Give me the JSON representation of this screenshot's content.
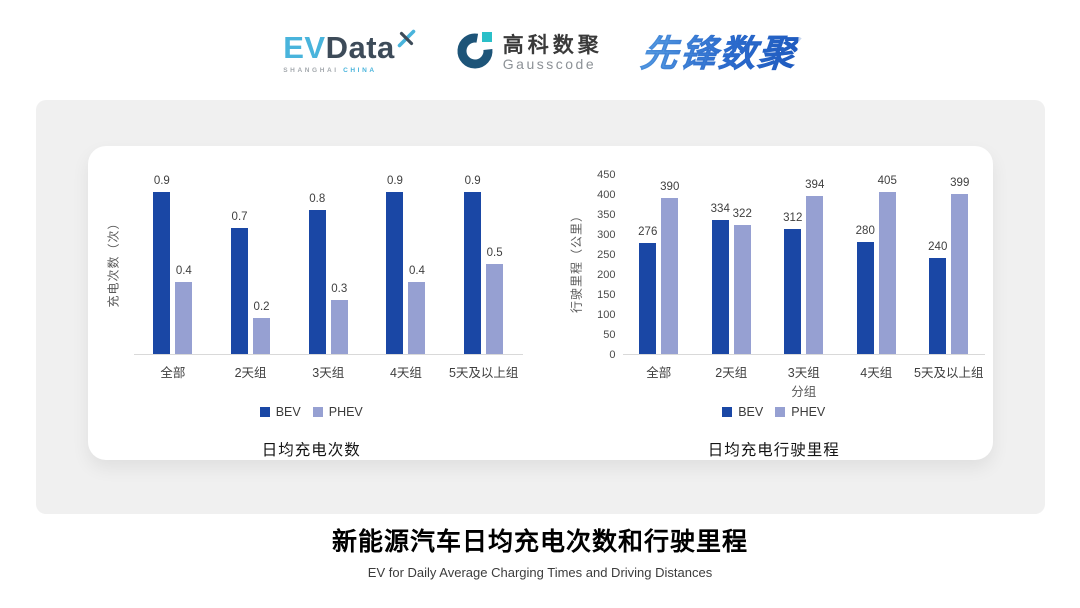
{
  "header": {
    "evdata": {
      "ev": "EV",
      "data": "Data",
      "sub_left": "SHANGHAI",
      "sub_right": "CHINA"
    },
    "gausscode": {
      "cn": "高科数聚",
      "en": "Gausscode"
    },
    "pioneer": {
      "text": "先锋数聚"
    }
  },
  "colors": {
    "bev": "#1A47A5",
    "phev": "#96A0D2",
    "axis_line": "#D9D9D9"
  },
  "chart_data": [
    {
      "type": "bar",
      "title": "日均充电次数",
      "ylabel": "充电次数（次）",
      "xlabel": "",
      "categories": [
        "全部",
        "2天组",
        "3天组",
        "4天组",
        "5天及以上组"
      ],
      "series": [
        {
          "name": "BEV",
          "color": "#1A47A5",
          "values": [
            0.9,
            0.7,
            0.8,
            0.9,
            0.9
          ]
        },
        {
          "name": "PHEV",
          "color": "#96A0D2",
          "values": [
            0.4,
            0.2,
            0.3,
            0.4,
            0.5
          ]
        }
      ],
      "ylim": [
        0,
        1.0
      ],
      "yticks": [],
      "grid": false,
      "legend_position": "bottom"
    },
    {
      "type": "bar",
      "title": "日均充电行驶里程",
      "ylabel": "行驶里程（公里）",
      "xlabel": "分组",
      "categories": [
        "全部",
        "2天组",
        "3天组",
        "4天组",
        "5天及以上组"
      ],
      "series": [
        {
          "name": "BEV",
          "color": "#1A47A5",
          "values": [
            276,
            334,
            312,
            280,
            240
          ]
        },
        {
          "name": "PHEV",
          "color": "#96A0D2",
          "values": [
            390,
            322,
            394,
            405,
            399
          ]
        }
      ],
      "ylim": [
        0,
        450
      ],
      "yticks": [
        0,
        50,
        100,
        150,
        200,
        250,
        300,
        350,
        400,
        450
      ],
      "grid": false,
      "legend_position": "bottom"
    }
  ],
  "footer": {
    "title": "新能源汽车日均充电次数和行驶里程",
    "subtitle": "EV for Daily Average Charging Times and Driving Distances"
  }
}
